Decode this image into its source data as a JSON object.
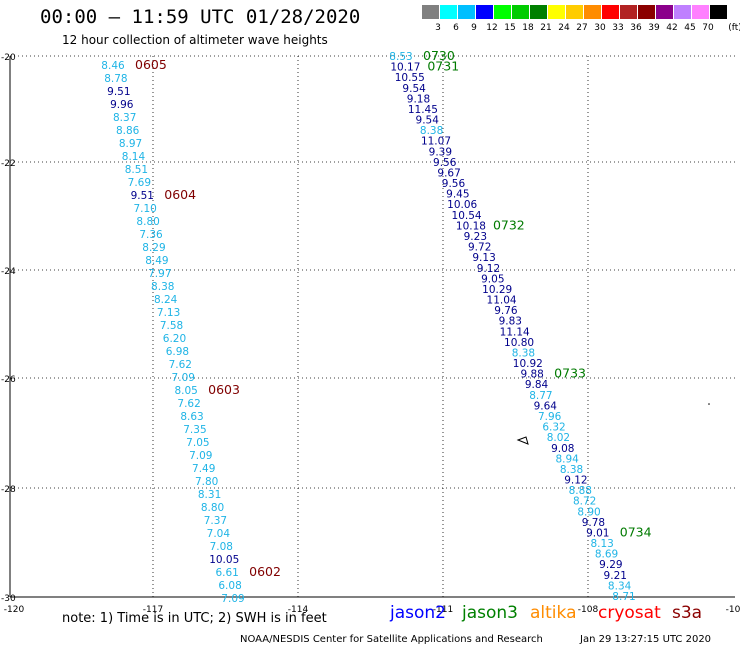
{
  "header": {
    "title": "00:00 – 11:59 UTC 01/28/2020",
    "subtitle": "12 hour collection of altimeter wave heights"
  },
  "legend": {
    "unit": "(ft)",
    "bins": [
      {
        "label": "3",
        "color": "#808080"
      },
      {
        "label": "6",
        "color": "#00ffff"
      },
      {
        "label": "9",
        "color": "#00bfff"
      },
      {
        "label": "12",
        "color": "#0000ff"
      },
      {
        "label": "15",
        "color": "#00ff00"
      },
      {
        "label": "18",
        "color": "#00cc00"
      },
      {
        "label": "21",
        "color": "#008000"
      },
      {
        "label": "24",
        "color": "#ffff00"
      },
      {
        "label": "27",
        "color": "#ffcc00"
      },
      {
        "label": "30",
        "color": "#ff8c00"
      },
      {
        "label": "33",
        "color": "#ff0000"
      },
      {
        "label": "36",
        "color": "#b22222"
      },
      {
        "label": "39",
        "color": "#8b0000"
      },
      {
        "label": "42",
        "color": "#8b008b"
      },
      {
        "label": "45",
        "color": "#bf80ff"
      },
      {
        "label": "70",
        "color": "#ff80ff"
      },
      {
        "label": "",
        "color": "#000000"
      }
    ]
  },
  "axes": {
    "lon_ticks": [
      "-120",
      "-117",
      "-114",
      "-111",
      "-108",
      "-10"
    ],
    "lat_ticks": [
      "-20",
      "-22",
      "-24",
      "-26",
      "-28",
      "-30"
    ]
  },
  "colors": {
    "light": "#1fb4e6",
    "dark": "#00008b",
    "time_red": "#800000",
    "time_green": "#007a00"
  },
  "track1": {
    "values": [
      "8.46",
      "8.78",
      "9.51",
      "9.96",
      "8.37",
      "8.86",
      "8.97",
      "8.14",
      "8.51",
      "7.69",
      "9.51",
      "7.10",
      "8.80",
      "7.36",
      "8.29",
      "8.49",
      "7.97",
      "8.38",
      "8.24",
      "7.13",
      "7.58",
      "6.20",
      "6.98",
      "7.62",
      "7.09",
      "8.05",
      "7.62",
      "8.63",
      "7.35",
      "7.05",
      "7.09",
      "7.49",
      "7.80",
      "8.31",
      "8.80",
      "7.37",
      "7.04",
      "7.08",
      "10.05",
      "6.61",
      "6.08",
      "7.09"
    ],
    "times": [
      {
        "label": "0605",
        "after": 0
      },
      {
        "label": "0604",
        "after": 10
      },
      {
        "label": "0603",
        "after": 25
      },
      {
        "label": "0602",
        "after": 39
      }
    ]
  },
  "track2": {
    "values": [
      "8.53",
      "10.17",
      "10.55",
      "9.54",
      "9.18",
      "11.45",
      "9.54",
      "8.38",
      "11.07",
      "9.39",
      "9.56",
      "9.67",
      "9.56",
      "9.45",
      "10.06",
      "10.54",
      "10.18",
      "9.23",
      "9.72",
      "9.13",
      "9.12",
      "9.05",
      "10.29",
      "11.04",
      "9.76",
      "9.83",
      "11.14",
      "10.80",
      "8.38",
      "10.92",
      "9.88",
      "9.84",
      "8.77",
      "9.64",
      "7.96",
      "6.32",
      "8.02",
      "9.08",
      "8.94",
      "8.38",
      "9.12",
      "8.88",
      "8.72",
      "8.90",
      "9.78",
      "9.01",
      "8.13",
      "8.69",
      "9.29",
      "9.21",
      "8.34",
      "8.71"
    ],
    "times": [
      {
        "label": "0730",
        "after": 0
      },
      {
        "label": "0731",
        "after": 1
      },
      {
        "label": "0732",
        "after": 16
      },
      {
        "label": "0733",
        "after": 30
      },
      {
        "label": "0734",
        "after": 45
      }
    ]
  },
  "footer": {
    "note": "note: 1) Time is in UTC; 2) SWH is in feet",
    "satellites": [
      {
        "name": "jason2",
        "color": "#0000ff"
      },
      {
        "name": "jason3",
        "color": "#008000"
      },
      {
        "name": "altika",
        "color": "#ff8c00"
      },
      {
        "name": "cryosat",
        "color": "#ff0000"
      },
      {
        "name": "s3a",
        "color": "#8b0000"
      }
    ],
    "credit": "NOAA/NESDIS Center for Satellite Applications and Research",
    "stamp": "Jan 29 13:27:15 UTC 2020"
  }
}
